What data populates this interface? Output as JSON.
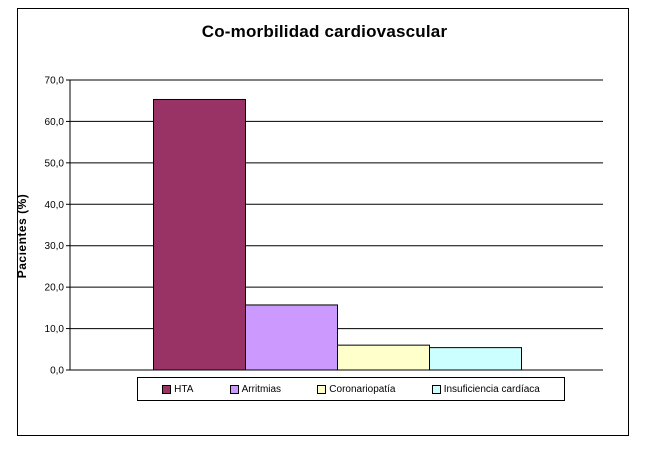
{
  "chart_data": {
    "type": "bar",
    "title": "Co-morbilidad  cardiovascular",
    "ylabel": "Pacientes (%)",
    "xlabel": "",
    "ylim": [
      0,
      70
    ],
    "yticks": [
      "0,0",
      "10,0",
      "20,0",
      "30,0",
      "40,0",
      "50,0",
      "60,0",
      "70,0"
    ],
    "grid": true,
    "legend_position": "bottom",
    "series": [
      {
        "name": "HTA",
        "value": 65.3,
        "color": "#993366"
      },
      {
        "name": "Arritmias",
        "value": 15.7,
        "color": "#CC99FF"
      },
      {
        "name": "Coronariopatía",
        "value": 6.0,
        "color": "#FFFFCC"
      },
      {
        "name": "Insuficiencia cardíaca",
        "value": 5.4,
        "color": "#CCFFFF"
      }
    ]
  }
}
